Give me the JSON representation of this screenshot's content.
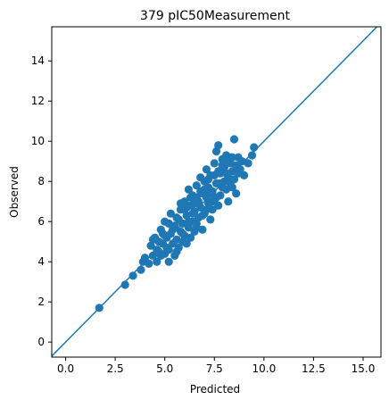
{
  "chart_data": {
    "type": "scatter",
    "title": "379 pIC50Measurement",
    "xlabel": "Predicted",
    "ylabel": "Observed",
    "xlim": [
      -0.7,
      15.9
    ],
    "ylim": [
      -0.75,
      15.7
    ],
    "x_ticks": [
      0.0,
      2.5,
      5.0,
      7.5,
      10.0,
      12.5,
      15.0
    ],
    "x_tick_labels": [
      "0.0",
      "2.5",
      "5.0",
      "7.5",
      "10.0",
      "12.5",
      "15.0"
    ],
    "y_ticks": [
      0,
      2,
      4,
      6,
      8,
      10,
      12,
      14
    ],
    "y_tick_labels": [
      "0",
      "2",
      "4",
      "6",
      "8",
      "10",
      "12",
      "14"
    ],
    "grid": false,
    "reference_line": {
      "slope": 1,
      "intercept": 0,
      "color": "#1f77b4"
    },
    "point_color": "#1f77b4",
    "points": [
      [
        1.7,
        1.7
      ],
      [
        3.0,
        2.85
      ],
      [
        3.4,
        3.3
      ],
      [
        3.8,
        3.6
      ],
      [
        3.9,
        4.0
      ],
      [
        4.0,
        4.2
      ],
      [
        4.2,
        3.9
      ],
      [
        4.3,
        4.8
      ],
      [
        4.4,
        4.3
      ],
      [
        4.5,
        5.2
      ],
      [
        4.6,
        4.0
      ],
      [
        4.6,
        4.6
      ],
      [
        4.7,
        5.0
      ],
      [
        4.8,
        4.3
      ],
      [
        4.8,
        5.6
      ],
      [
        4.9,
        4.9
      ],
      [
        5.0,
        4.4
      ],
      [
        5.0,
        6.0
      ],
      [
        5.1,
        5.2
      ],
      [
        5.2,
        4.0
      ],
      [
        5.2,
        4.6
      ],
      [
        5.3,
        5.4
      ],
      [
        5.3,
        6.4
      ],
      [
        5.4,
        4.9
      ],
      [
        5.5,
        5.8
      ],
      [
        5.5,
        4.3
      ],
      [
        5.6,
        5.1
      ],
      [
        5.6,
        6.2
      ],
      [
        5.7,
        4.7
      ],
      [
        5.8,
        5.5
      ],
      [
        5.8,
        6.6
      ],
      [
        5.9,
        5.0
      ],
      [
        5.9,
        5.9
      ],
      [
        6.0,
        7.0
      ],
      [
        6.0,
        5.3
      ],
      [
        6.1,
        6.3
      ],
      [
        6.1,
        4.9
      ],
      [
        6.2,
        7.6
      ],
      [
        6.2,
        5.7
      ],
      [
        6.3,
        6.8
      ],
      [
        6.3,
        5.2
      ],
      [
        6.4,
        6.0
      ],
      [
        6.4,
        7.3
      ],
      [
        6.5,
        5.5
      ],
      [
        6.5,
        6.5
      ],
      [
        6.6,
        7.8
      ],
      [
        6.6,
        5.9
      ],
      [
        6.7,
        7.0
      ],
      [
        6.7,
        6.2
      ],
      [
        6.8,
        8.2
      ],
      [
        6.8,
        6.7
      ],
      [
        6.9,
        7.4
      ],
      [
        6.9,
        5.6
      ],
      [
        7.0,
        8.0
      ],
      [
        7.0,
        6.4
      ],
      [
        7.1,
        7.2
      ],
      [
        7.1,
        8.6
      ],
      [
        7.2,
        6.9
      ],
      [
        7.2,
        7.7
      ],
      [
        7.3,
        6.1
      ],
      [
        7.3,
        8.3
      ],
      [
        7.4,
        7.5
      ],
      [
        7.4,
        6.6
      ],
      [
        7.5,
        8.9
      ],
      [
        7.5,
        7.1
      ],
      [
        7.6,
        9.5
      ],
      [
        7.6,
        7.9
      ],
      [
        7.7,
        9.8
      ],
      [
        7.7,
        6.8
      ],
      [
        7.8,
        8.4
      ],
      [
        7.8,
        7.3
      ],
      [
        7.9,
        9.1
      ],
      [
        7.9,
        7.7
      ],
      [
        8.0,
        8.7
      ],
      [
        8.0,
        8.0
      ],
      [
        8.1,
        7.6
      ],
      [
        8.1,
        9.3
      ],
      [
        8.2,
        8.2
      ],
      [
        8.2,
        7.0
      ],
      [
        8.3,
        8.9
      ],
      [
        8.3,
        7.9
      ],
      [
        8.4,
        9.2
      ],
      [
        8.4,
        8.5
      ],
      [
        8.5,
        10.1
      ],
      [
        8.5,
        8.1
      ],
      [
        8.6,
        7.4
      ],
      [
        8.6,
        8.8
      ],
      [
        8.7,
        9.2
      ],
      [
        8.8,
        8.6
      ],
      [
        8.9,
        9.0
      ],
      [
        9.0,
        8.3
      ],
      [
        9.2,
        8.9
      ],
      [
        9.4,
        9.3
      ],
      [
        9.5,
        9.7
      ],
      [
        4.4,
        5.1
      ],
      [
        4.9,
        5.4
      ],
      [
        5.1,
        4.7
      ],
      [
        5.4,
        5.6
      ],
      [
        5.6,
        4.5
      ],
      [
        5.7,
        6.1
      ],
      [
        5.9,
        5.4
      ],
      [
        6.0,
        6.6
      ],
      [
        6.2,
        6.0
      ],
      [
        6.3,
        7.2
      ],
      [
        6.5,
        6.9
      ],
      [
        6.6,
        5.7
      ],
      [
        6.8,
        7.5
      ],
      [
        6.9,
        6.3
      ],
      [
        7.0,
        7.6
      ],
      [
        7.2,
        8.1
      ],
      [
        7.3,
        7.4
      ],
      [
        7.5,
        8.3
      ],
      [
        7.6,
        7.2
      ],
      [
        7.7,
        8.5
      ],
      [
        7.9,
        8.8
      ],
      [
        8.1,
        8.4
      ],
      [
        8.3,
        9.2
      ],
      [
        8.4,
        7.7
      ],
      [
        6.1,
        6.7
      ],
      [
        6.4,
        6.4
      ],
      [
        5.8,
        6.9
      ],
      [
        5.2,
        5.9
      ],
      [
        5.0,
        5.3
      ],
      [
        4.7,
        4.5
      ],
      [
        6.6,
        7.2
      ],
      [
        7.1,
        6.6
      ],
      [
        7.4,
        7.0
      ],
      [
        7.8,
        7.9
      ],
      [
        8.0,
        9.0
      ],
      [
        8.7,
        8.4
      ]
    ]
  }
}
